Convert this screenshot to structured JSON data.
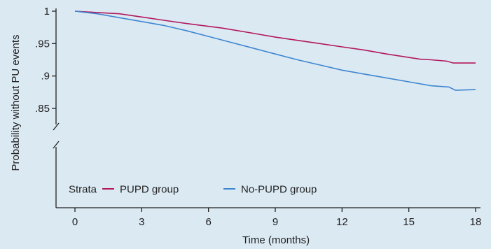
{
  "chart_data": {
    "type": "line",
    "title": "",
    "xlabel": "Time (months)",
    "ylabel": "Probability without PU events",
    "xlim": [
      0,
      18
    ],
    "ylim_visible": [
      0.825,
      1.0
    ],
    "y_axis_break": true,
    "xticks": [
      0,
      3,
      6,
      9,
      12,
      15,
      18
    ],
    "xtick_labels": [
      "0",
      "3",
      "6",
      "9",
      "12",
      "15",
      "18"
    ],
    "yticks": [
      1.0,
      0.95,
      0.9,
      0.85
    ],
    "ytick_labels": [
      "1",
      ".95",
      ".9",
      ".85"
    ],
    "grid": false,
    "legend": {
      "title": "Strata",
      "placement": "bottom-left"
    },
    "background_color": "#dbe9f3",
    "series": [
      {
        "name": "PUPD group",
        "color": "#b3185c",
        "x": [
          0,
          1,
          2,
          3,
          4,
          5,
          6.6,
          8,
          9,
          10,
          11,
          12,
          13,
          14,
          15.5,
          16,
          16.7,
          17,
          17.2,
          18
        ],
        "y": [
          1.0,
          0.998,
          0.996,
          0.991,
          0.986,
          0.981,
          0.974,
          0.966,
          0.96,
          0.955,
          0.95,
          0.945,
          0.94,
          0.934,
          0.926,
          0.925,
          0.923,
          0.92,
          0.92,
          0.92
        ]
      },
      {
        "name": "No-PUPD group",
        "color": "#3f86d0",
        "x": [
          0,
          1,
          2,
          3,
          4,
          5,
          6,
          7,
          8,
          9,
          10,
          11,
          12,
          13,
          14,
          15,
          16,
          16.8,
          17.1,
          18
        ],
        "y": [
          1.0,
          0.996,
          0.99,
          0.984,
          0.978,
          0.97,
          0.961,
          0.952,
          0.943,
          0.934,
          0.925,
          0.917,
          0.909,
          0.903,
          0.897,
          0.891,
          0.885,
          0.883,
          0.878,
          0.879
        ]
      }
    ]
  }
}
